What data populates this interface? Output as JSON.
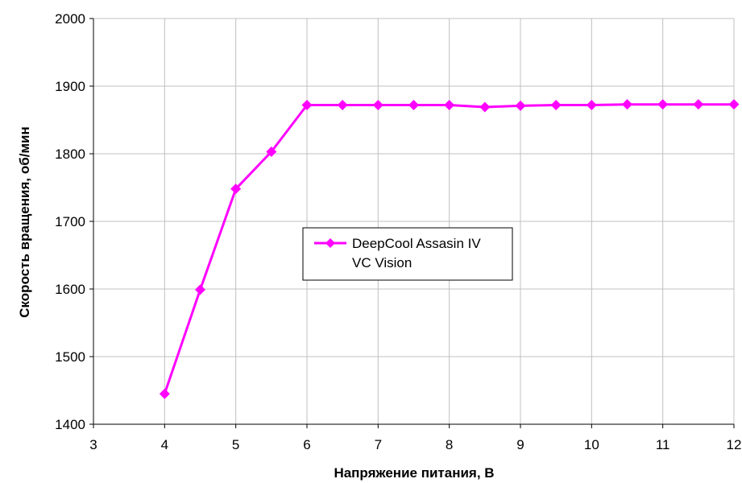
{
  "chart_data": {
    "type": "line",
    "title": "",
    "xlabel": "Напряжение питания, В",
    "ylabel": "Скорость вращения, об/мин",
    "xlim": [
      3,
      12
    ],
    "ylim": [
      1400,
      2000
    ],
    "xticks": [
      3,
      4,
      5,
      6,
      7,
      8,
      9,
      10,
      11,
      12
    ],
    "yticks": [
      1400,
      1500,
      1600,
      1700,
      1800,
      1900,
      2000
    ],
    "grid": true,
    "legend_position": "center",
    "series": [
      {
        "name": "DeepCool Assasin IV VC Vision",
        "legend_lines": [
          "DeepCool Assasin IV",
          "VC Vision"
        ],
        "color": "#ff00ff",
        "marker": "diamond",
        "x": [
          4,
          4.5,
          5,
          5.5,
          6,
          6.5,
          7,
          7.5,
          8,
          8.5,
          9,
          9.5,
          10,
          10.5,
          11,
          11.5,
          12
        ],
        "y": [
          1445,
          1599,
          1748,
          1803,
          1872,
          1872,
          1872,
          1872,
          1872,
          1869,
          1871,
          1872,
          1872,
          1873,
          1873,
          1873,
          1873
        ]
      }
    ]
  }
}
